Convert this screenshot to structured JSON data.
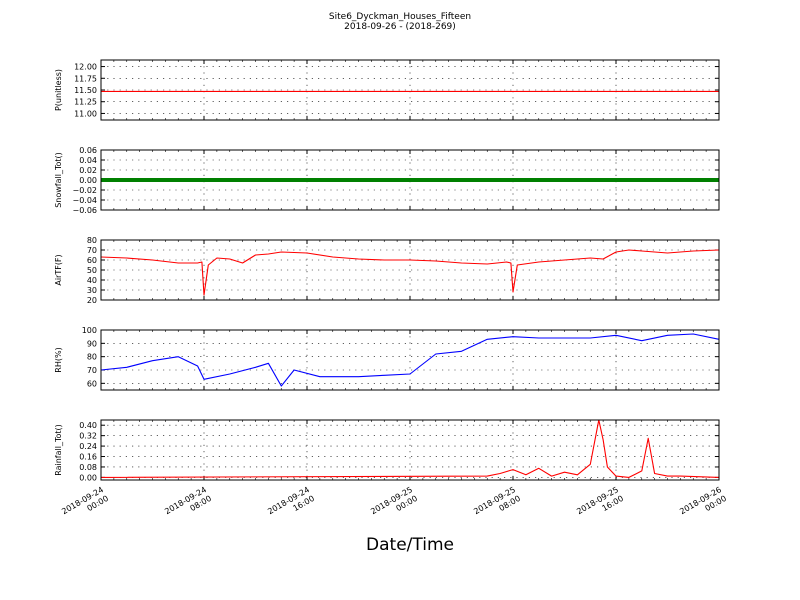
{
  "figure": {
    "title": "Site6_Dyckman_Houses_Fifteen",
    "subtitle": "2018-09-26 - (2018-269)",
    "xlabel": "Date/Time",
    "x_ticks": [
      {
        "line1": "2018-09-24",
        "line2": "00:00"
      },
      {
        "line1": "2018-09-24",
        "line2": "08:00"
      },
      {
        "line1": "2018-09-24",
        "line2": "16:00"
      },
      {
        "line1": "2018-09-25",
        "line2": "00:00"
      },
      {
        "line1": "2018-09-25",
        "line2": "08:00"
      },
      {
        "line1": "2018-09-25",
        "line2": "16:00"
      },
      {
        "line1": "2018-09-26",
        "line2": "00:00"
      }
    ]
  },
  "chart_data": [
    {
      "type": "line",
      "ylabel": "P(unitless)",
      "ylim": [
        10.86,
        12.14
      ],
      "yticks": [
        11.0,
        11.25,
        11.5,
        11.75,
        12.0
      ],
      "ytick_labels": [
        "11.00",
        "11.25",
        "11.50",
        "11.75",
        "12.00"
      ],
      "xlim": [
        "2018-09-24 00:00",
        "2018-09-26 00:00"
      ],
      "grid": true,
      "color": "#ff0000",
      "x": [
        "2018-09-24 00:00",
        "2018-09-26 00:00"
      ],
      "values": [
        11.47,
        11.47
      ]
    },
    {
      "type": "line",
      "ylabel": "Snowfall_Tot()",
      "ylim": [
        -0.06,
        0.06
      ],
      "yticks": [
        -0.06,
        -0.04,
        -0.02,
        0.0,
        0.02,
        0.04,
        0.06
      ],
      "ytick_labels": [
        "−0.06",
        "−0.04",
        "−0.02",
        "0.00",
        "0.02",
        "0.04",
        "0.06"
      ],
      "xlim": [
        "2018-09-24 00:00",
        "2018-09-26 00:00"
      ],
      "grid": true,
      "color": "#008000",
      "x": [
        "2018-09-24 00:00",
        "2018-09-26 00:00"
      ],
      "values": [
        0,
        0
      ]
    },
    {
      "type": "line",
      "ylabel": "AirTF(F)",
      "ylim": [
        20,
        80
      ],
      "yticks": [
        20,
        30,
        40,
        50,
        60,
        70,
        80
      ],
      "ytick_labels": [
        "20",
        "30",
        "40",
        "50",
        "60",
        "70",
        "80"
      ],
      "xlim": [
        "2018-09-24 00:00",
        "2018-09-26 00:00"
      ],
      "grid": true,
      "color": "#ff0000",
      "x": [
        "2018-09-24 00:00",
        "2018-09-24 02:00",
        "2018-09-24 04:00",
        "2018-09-24 06:00",
        "2018-09-24 07:30",
        "2018-09-24 07:50",
        "2018-09-24 08:00",
        "2018-09-24 08:20",
        "2018-09-24 09:00",
        "2018-09-24 10:00",
        "2018-09-24 11:00",
        "2018-09-24 12:00",
        "2018-09-24 13:00",
        "2018-09-24 14:00",
        "2018-09-24 16:00",
        "2018-09-24 18:00",
        "2018-09-24 20:00",
        "2018-09-24 22:00",
        "2018-09-25 00:00",
        "2018-09-25 02:00",
        "2018-09-25 04:00",
        "2018-09-25 06:00",
        "2018-09-25 07:30",
        "2018-09-25 07:50",
        "2018-09-25 08:00",
        "2018-09-25 08:20",
        "2018-09-25 10:00",
        "2018-09-25 12:00",
        "2018-09-25 14:00",
        "2018-09-25 15:00",
        "2018-09-25 16:00",
        "2018-09-25 17:00",
        "2018-09-25 18:00",
        "2018-09-25 20:00",
        "2018-09-25 22:00",
        "2018-09-26 00:00"
      ],
      "values": [
        63,
        62,
        60,
        57,
        57,
        58,
        25,
        55,
        62,
        61,
        57,
        65,
        66,
        68,
        67,
        63,
        61,
        60,
        60,
        59,
        57,
        56,
        58,
        57,
        28,
        55,
        58,
        60,
        62,
        61,
        68,
        70,
        69,
        67,
        69,
        70
      ]
    },
    {
      "type": "line",
      "ylabel": "RH(%)",
      "ylim": [
        55,
        100
      ],
      "yticks": [
        60,
        70,
        80,
        90,
        100
      ],
      "ytick_labels": [
        "60",
        "70",
        "80",
        "90",
        "100"
      ],
      "xlim": [
        "2018-09-24 00:00",
        "2018-09-26 00:00"
      ],
      "grid": true,
      "color": "#0000ff",
      "x": [
        "2018-09-24 00:00",
        "2018-09-24 02:00",
        "2018-09-24 04:00",
        "2018-09-24 06:00",
        "2018-09-24 07:30",
        "2018-09-24 08:00",
        "2018-09-24 10:00",
        "2018-09-24 12:00",
        "2018-09-24 13:00",
        "2018-09-24 14:00",
        "2018-09-24 15:00",
        "2018-09-24 17:00",
        "2018-09-24 20:00",
        "2018-09-24 22:00",
        "2018-09-25 00:00",
        "2018-09-25 02:00",
        "2018-09-25 04:00",
        "2018-09-25 06:00",
        "2018-09-25 08:00",
        "2018-09-25 10:00",
        "2018-09-25 12:00",
        "2018-09-25 14:00",
        "2018-09-25 16:00",
        "2018-09-25 18:00",
        "2018-09-25 20:00",
        "2018-09-25 22:00",
        "2018-09-26 00:00"
      ],
      "values": [
        70,
        72,
        77,
        80,
        73,
        63,
        67,
        72,
        75,
        58,
        70,
        65,
        65,
        66,
        67,
        82,
        84,
        93,
        95,
        94,
        94,
        94,
        96,
        92,
        96,
        97,
        93
      ]
    },
    {
      "type": "line",
      "ylabel": "Rainfall_Tot()",
      "ylim": [
        -0.02,
        0.44
      ],
      "yticks": [
        0.0,
        0.08,
        0.16,
        0.24,
        0.32,
        0.4
      ],
      "ytick_labels": [
        "0.00",
        "0.08",
        "0.16",
        "0.24",
        "0.32",
        "0.40"
      ],
      "xlim": [
        "2018-09-24 00:00",
        "2018-09-26 00:00"
      ],
      "grid": true,
      "color": "#ff0000",
      "x": [
        "2018-09-24 00:00",
        "2018-09-25 06:00",
        "2018-09-25 07:00",
        "2018-09-25 08:00",
        "2018-09-25 09:00",
        "2018-09-25 10:00",
        "2018-09-25 11:00",
        "2018-09-25 12:00",
        "2018-09-25 13:00",
        "2018-09-25 14:00",
        "2018-09-25 14:40",
        "2018-09-25 15:00",
        "2018-09-25 15:20",
        "2018-09-25 16:00",
        "2018-09-25 17:00",
        "2018-09-25 18:00",
        "2018-09-25 18:30",
        "2018-09-25 19:00",
        "2018-09-25 20:00",
        "2018-09-25 21:00",
        "2018-09-26 00:00"
      ],
      "values": [
        0,
        0.01,
        0.03,
        0.06,
        0.02,
        0.07,
        0.01,
        0.04,
        0.02,
        0.1,
        0.44,
        0.29,
        0.08,
        0.01,
        0,
        0.05,
        0.3,
        0.03,
        0.01,
        0.01,
        0
      ]
    }
  ]
}
